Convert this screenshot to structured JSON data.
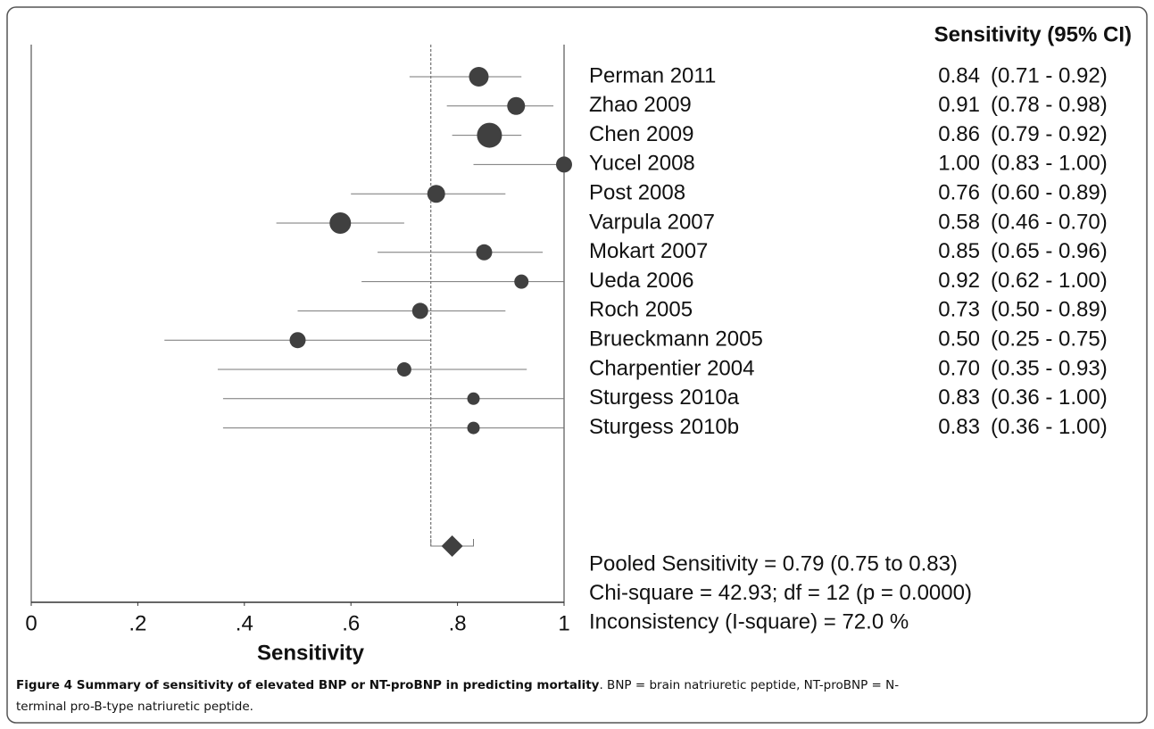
{
  "chart_data": {
    "type": "forest",
    "header": "Sensitivity (95% CI)",
    "studies": [
      "Perman 2011",
      "Zhao 2009",
      "Chen 2009",
      "Yucel 2008",
      "Post 2008",
      "Varpula 2007",
      "Mokart 2007",
      "Ueda 2006",
      "Roch 2005",
      "Brueckmann 2005",
      "Charpentier 2004",
      "Sturgess 2010a",
      "Sturgess 2010b"
    ],
    "values": [
      0.84,
      0.91,
      0.86,
      1,
      0.76,
      0.58,
      0.85,
      0.92,
      0.73,
      0.5,
      0.7,
      0.83,
      0.83
    ],
    "value_labels": [
      "0.84",
      "0.91",
      "0.86",
      "1.00",
      "0.76",
      "0.58",
      "0.85",
      "0.92",
      "0.73",
      "0.50",
      "0.70",
      "0.83",
      "0.83"
    ],
    "ci_lower": [
      0.71,
      0.78,
      0.79,
      0.83,
      0.6,
      0.46,
      0.65,
      0.62,
      0.5,
      0.25,
      0.35,
      0.36,
      0.36
    ],
    "ci_upper": [
      0.92,
      0.98,
      0.92,
      1,
      0.89,
      0.7,
      0.96,
      1,
      0.89,
      0.75,
      0.93,
      1,
      1
    ],
    "ci_labels": [
      "(0.71 - 0.92)",
      "(0.78 - 0.98)",
      "(0.79 - 0.92)",
      "(0.83 - 1.00)",
      "(0.60 - 0.89)",
      "(0.46 - 0.70)",
      "(0.65 - 0.96)",
      "(0.62 - 1.00)",
      "(0.50 - 0.89)",
      "(0.25 - 0.75)",
      "(0.35 - 0.93)",
      "(0.36 - 1.00)",
      "(0.36 - 1.00)"
    ],
    "sizes": [
      11,
      10,
      14,
      9,
      10,
      12,
      9,
      8,
      9,
      9,
      8,
      7,
      7
    ],
    "color": "#404040",
    "pooled": {
      "value": 0.79,
      "lower": 0.75,
      "upper": 0.83
    },
    "stats": [
      "Pooled Sensitivity = 0.79 (0.75 to 0.83)",
      "Chi-square = 42.93; df =  12 (p = 0.0000)",
      "Inconsistency (I-square) = 72.0 %"
    ],
    "xlabel": "Sensitivity",
    "xlim": [
      0,
      1
    ],
    "xticks": [
      0,
      {
        "value": 0.2,
        "label": ".2"
      },
      {
        "value": 0.4,
        "label": ".4"
      },
      {
        "value": 0.6,
        "label": ".6"
      },
      {
        "value": 0.8,
        "label": ".8"
      },
      1
    ]
  },
  "caption": {
    "bold": "Figure 4 Summary of sensitivity of elevated BNP or NT-proBNP in predicting mortality",
    "rest": ". BNP = brain natriuretic peptide, NT-proBNP = N-",
    "rest2": "terminal pro-B-type natriuretic peptide."
  }
}
